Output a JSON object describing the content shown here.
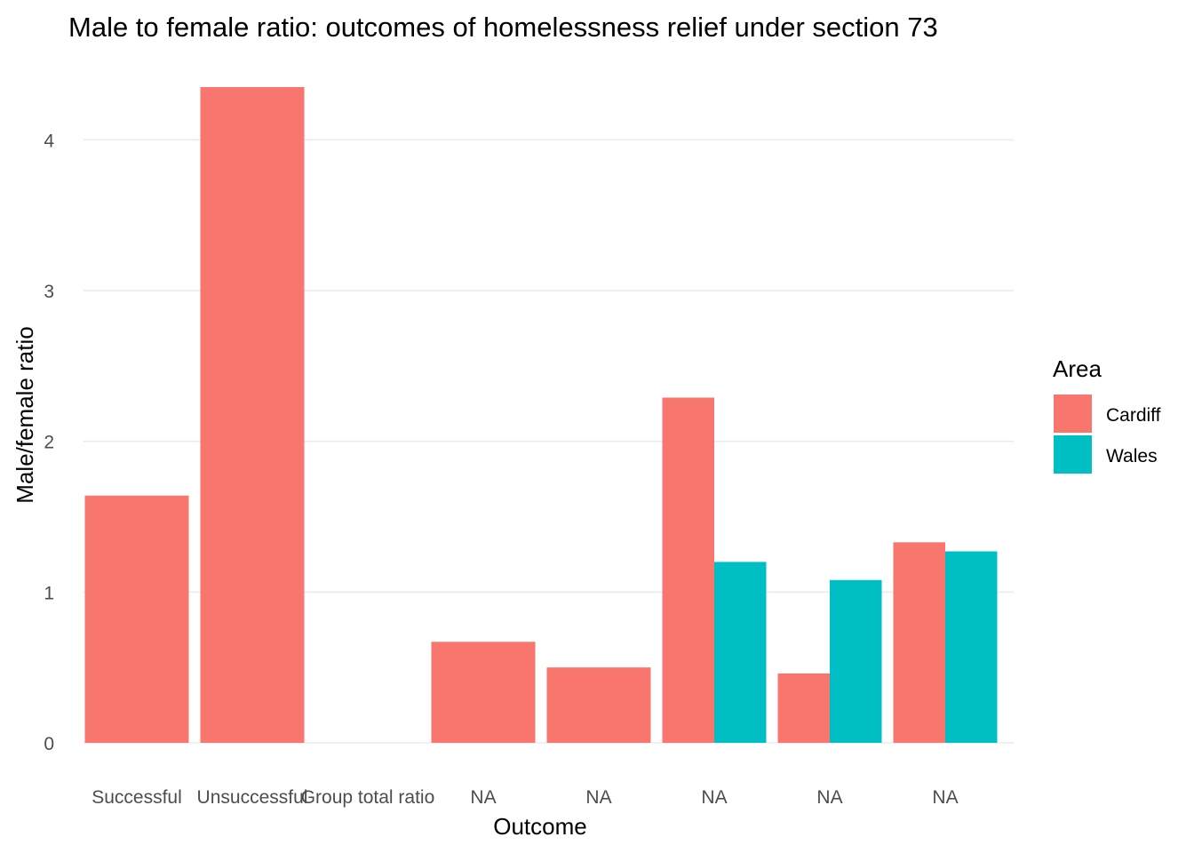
{
  "chart_data": {
    "type": "bar",
    "title": "Male to female ratio: outcomes of homelessness relief under section 73",
    "xlabel": "Outcome",
    "ylabel": "Male/female ratio",
    "ylim": [
      0,
      4.35
    ],
    "yticks": [
      "0",
      "1",
      "2",
      "3",
      "4"
    ],
    "grid": true,
    "legend": {
      "title": "Area",
      "position": "right"
    },
    "categories": [
      "Successful",
      "Unsuccessful",
      "Group total ratio",
      "NA",
      "NA",
      "NA",
      "NA",
      "NA"
    ],
    "series": [
      {
        "name": "Cardiff",
        "color": "#F8766D",
        "values": [
          1.64,
          4.35,
          null,
          0.67,
          0.5,
          2.29,
          0.46,
          1.33
        ]
      },
      {
        "name": "Wales",
        "color": "#00BFC4",
        "values": [
          null,
          null,
          null,
          null,
          null,
          1.2,
          1.08,
          1.27
        ]
      }
    ]
  }
}
